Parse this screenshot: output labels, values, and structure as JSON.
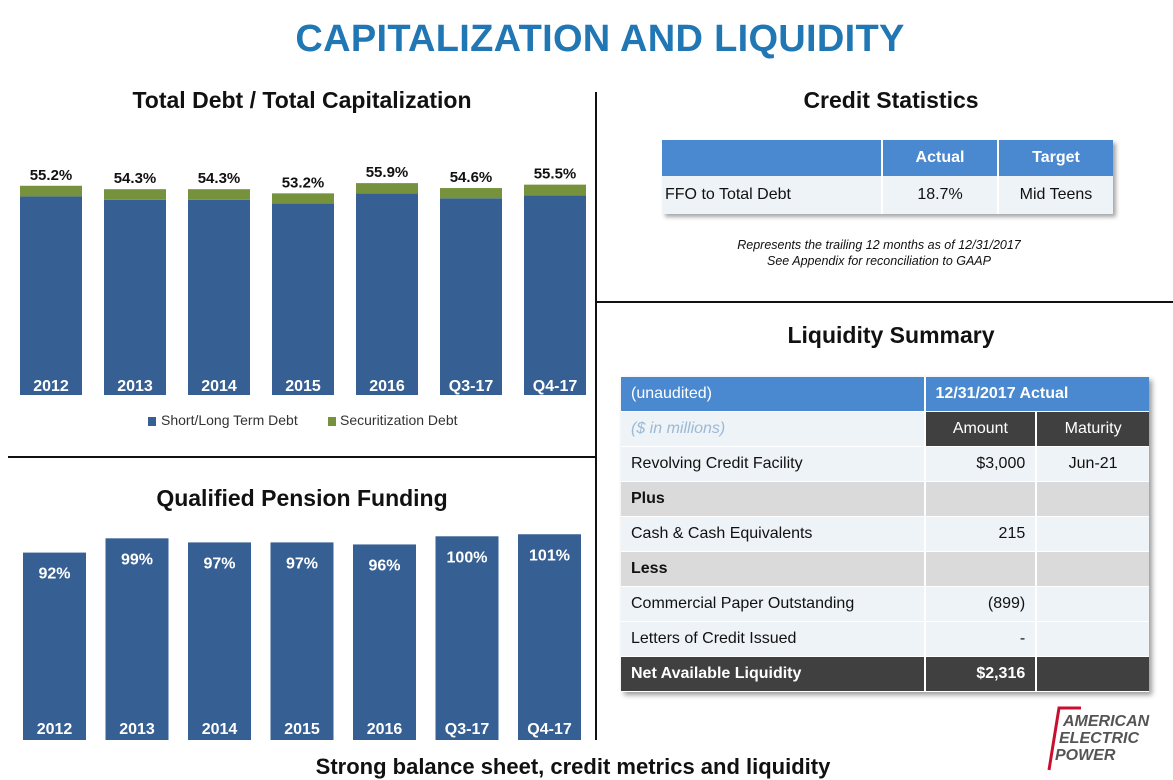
{
  "page": {
    "title": "CAPITALIZATION AND LIQUIDITY",
    "footer": "Strong balance sheet, credit metrics and liquidity"
  },
  "colors": {
    "title_blue": "#2176b4",
    "bar_blue": "#365f93",
    "securitization_green": "#77923c",
    "table_header_blue": "#4a88cf",
    "dark_cell": "#404040",
    "logo_red": "#c8102e"
  },
  "chart_data": [
    {
      "type": "bar",
      "title": "Total Debt / Total Capitalization",
      "categories": [
        "2012",
        "2013",
        "2014",
        "2015",
        "2016",
        "Q3-17",
        "Q4-17"
      ],
      "series": [
        {
          "name": "Short/Long Term Debt",
          "values": [
            52.4,
            51.5,
            51.5,
            50.5,
            53.2,
            51.9,
            52.7
          ]
        },
        {
          "name": "Securitization Debt",
          "values": [
            2.8,
            2.8,
            2.8,
            2.7,
            2.7,
            2.7,
            2.8
          ]
        }
      ],
      "data_labels": [
        "55.2%",
        "54.3%",
        "54.3%",
        "53.2%",
        "55.9%",
        "54.6%",
        "55.5%"
      ],
      "stacked": true,
      "ylim": [
        0,
        62
      ],
      "legend": [
        "Short/Long Term Debt",
        "Securitization Debt"
      ],
      "legend_position": "bottom",
      "xlabel": "",
      "ylabel": ""
    },
    {
      "type": "bar",
      "title": "Qualified Pension Funding",
      "categories": [
        "2012",
        "2013",
        "2014",
        "2015",
        "2016",
        "Q3-17",
        "Q4-17"
      ],
      "values": [
        92,
        99,
        97,
        97,
        96,
        100,
        101
      ],
      "data_labels": [
        "92%",
        "99%",
        "97%",
        "97%",
        "96%",
        "100%",
        "101%"
      ],
      "ylim": [
        0,
        108
      ],
      "xlabel": "",
      "ylabel": ""
    }
  ],
  "credit": {
    "title": "Credit Statistics",
    "columns": [
      "",
      "Actual",
      "Target"
    ],
    "rows": [
      {
        "metric": "FFO to Total Debt",
        "actual": "18.7%",
        "target": "Mid Teens"
      }
    ],
    "note_line1": "Represents the trailing 12 months as of 12/31/2017",
    "note_line2": "See Appendix for reconciliation to GAAP"
  },
  "liquidity": {
    "title": "Liquidity Summary",
    "header_left": "(unaudited)",
    "header_right": "12/31/2017 Actual",
    "units": "($ in millions)",
    "col_amount": "Amount",
    "col_maturity": "Maturity",
    "rows": [
      {
        "label": "Revolving Credit Facility",
        "amount": "$3,000",
        "maturity": "Jun-21"
      },
      {
        "label": "Plus",
        "amount": "",
        "maturity": ""
      },
      {
        "label": "Cash & Cash Equivalents",
        "amount": "215",
        "maturity": ""
      },
      {
        "label": "Less",
        "amount": "",
        "maturity": ""
      },
      {
        "label": "Commercial Paper Outstanding",
        "amount": "(899)",
        "maturity": ""
      },
      {
        "label": "Letters of Credit Issued",
        "amount": "-",
        "maturity": ""
      }
    ],
    "total": {
      "label": "Net Available Liquidity",
      "amount": "$2,316"
    }
  },
  "logo": {
    "line1": "AMERICAN",
    "line2": "ELECTRIC",
    "line3": "POWER"
  }
}
